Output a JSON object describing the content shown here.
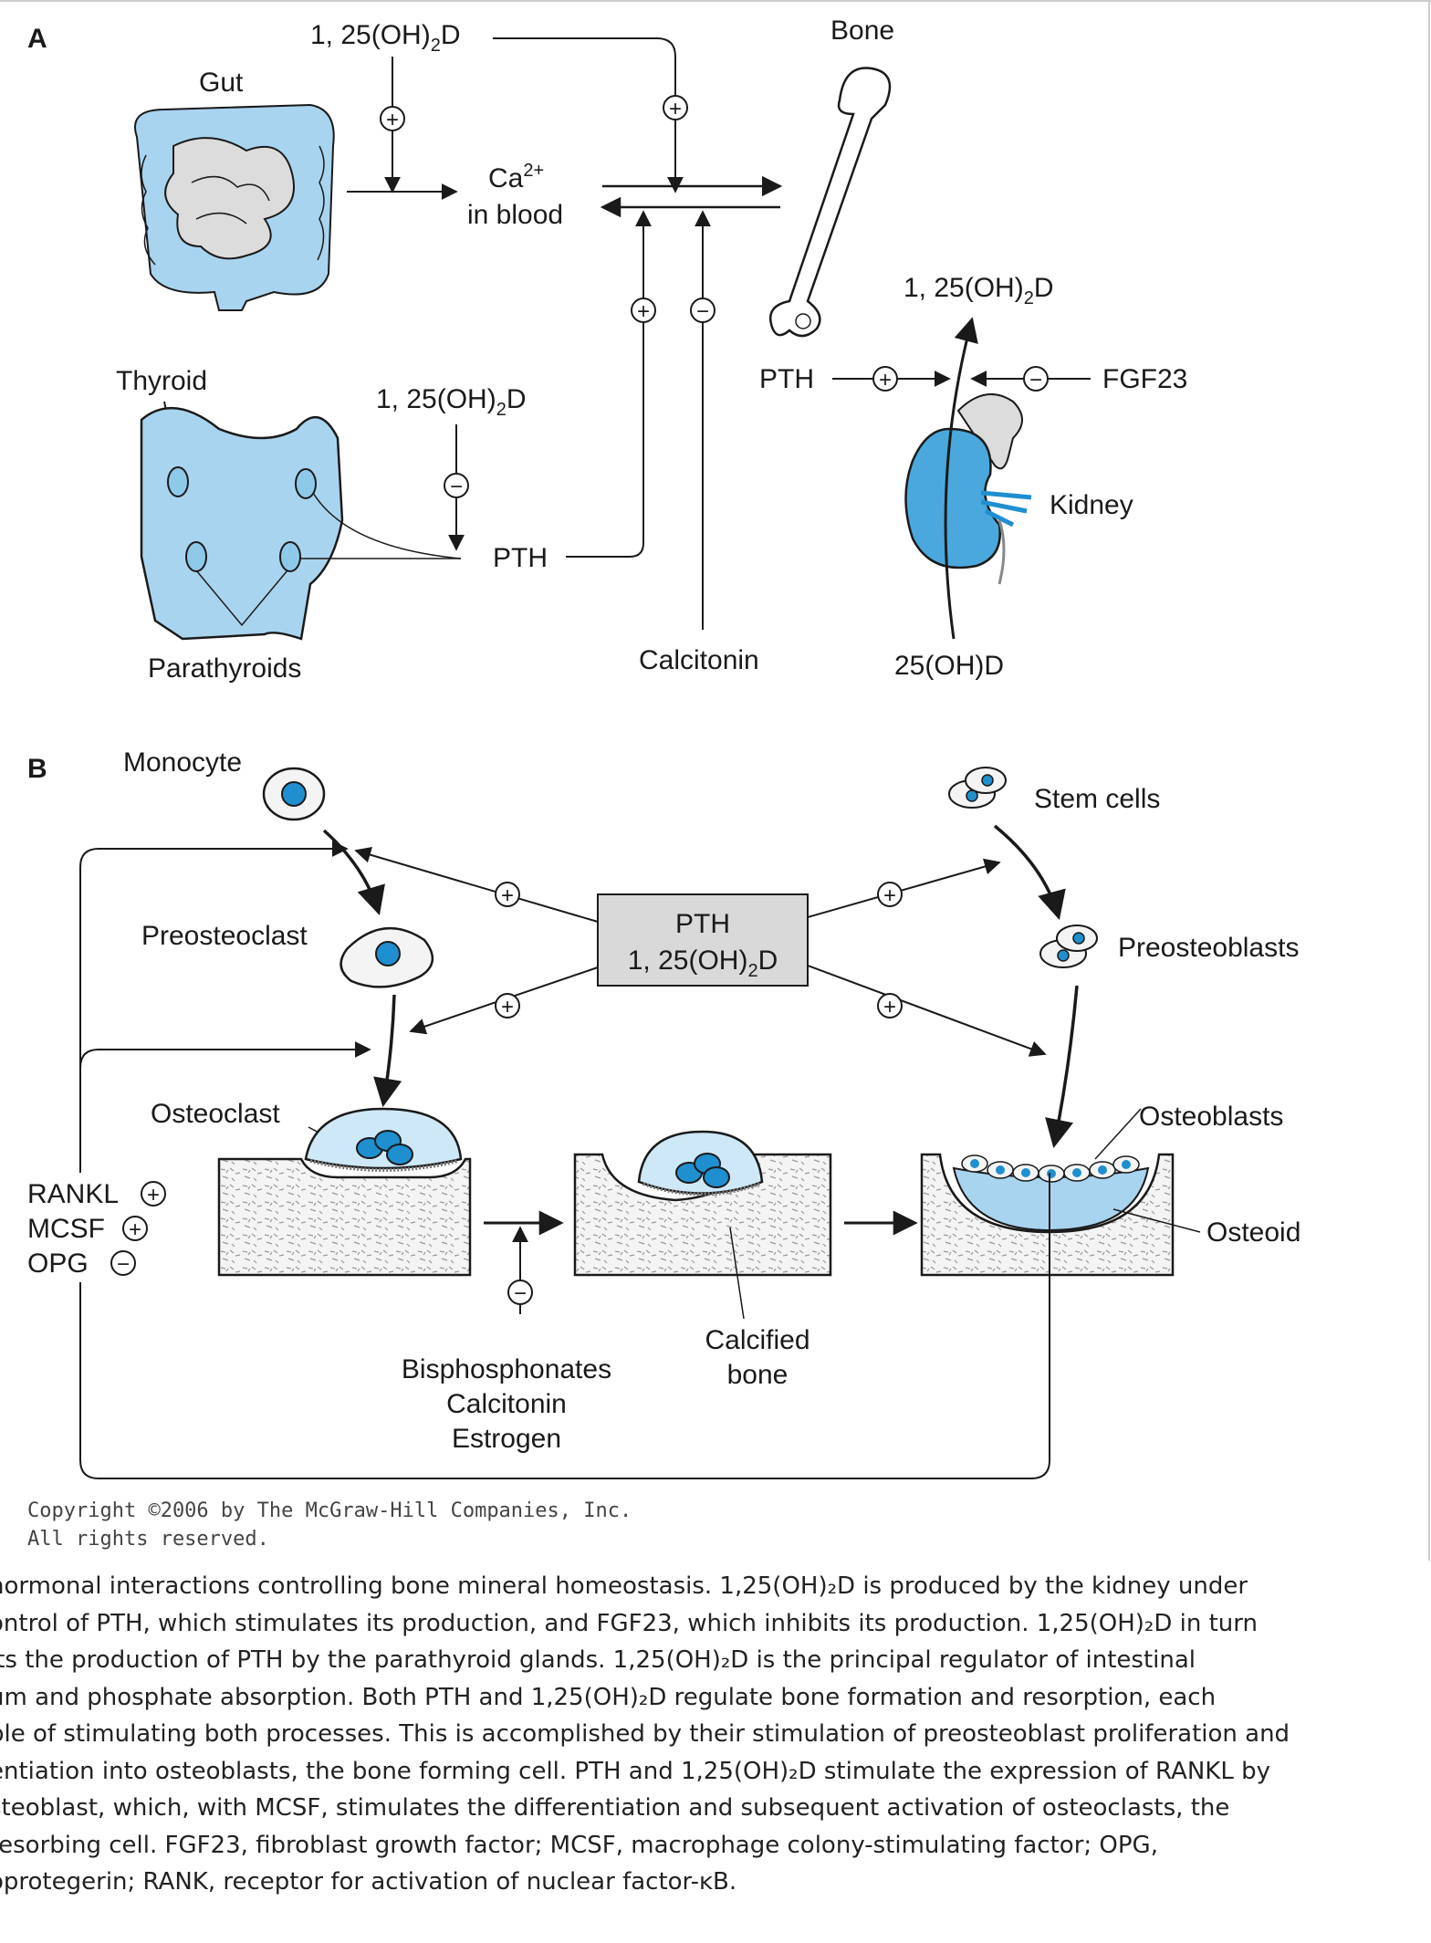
{
  "panel_a": {
    "label": "A",
    "gut": "Gut",
    "bone": "Bone",
    "vitd_top": "1, 25(OH)",
    "vitd_sub": "2",
    "vitd_suffix": "D",
    "ca_line1": "Ca",
    "ca_sup": "2+",
    "ca_line2": "in blood",
    "thyroid": "Thyroid",
    "parathyroids": "Parathyroids",
    "pth": "PTH",
    "calcitonin": "Calcitonin",
    "fgf23": "FGF23",
    "kidney": "Kidney",
    "ohd": "25(OH)D",
    "plus": "+",
    "minus": "−"
  },
  "panel_b": {
    "label": "B",
    "monocyte": "Monocyte",
    "preosteoclast": "Preosteoclast",
    "osteoclast": "Osteoclast",
    "stem_cells": "Stem cells",
    "preosteoblasts": "Preosteoblasts",
    "osteoblasts": "Osteoblasts",
    "osteoid": "Osteoid",
    "box_line1": "PTH",
    "box_line2": "1, 25(OH)",
    "rankl": "RANKL",
    "mcsf": "MCSF",
    "opg": "OPG",
    "bisphosphonates": "Bisphosphonates",
    "calcitonin": "Calcitonin",
    "estrogen": "Estrogen",
    "calcified_1": "Calcified",
    "calcified_2": "bone"
  },
  "copyright": {
    "line1": "Copyright ©2006 by The McGraw-Hill Companies, Inc.",
    "line2": "All rights reserved."
  },
  "caption": {
    "line1": "hormonal interactions controlling bone mineral homeostasis. 1,25(OH)₂D is produced by the kidney under",
    "line2": "ontrol of PTH, which stimulates its production, and FGF23, which inhibits its production. 1,25(OH)₂D in turn",
    "line3": "its the production of PTH by the parathyroid glands. 1,25(OH)₂D is the principal regulator of intestinal",
    "line4": "um and phosphate absorption. Both PTH and 1,25(OH)₂D regulate bone formation and resorption, each",
    "line5": "ble of stimulating both processes. This is accomplished by their stimulation of preosteoblast proliferation and",
    "line6": "entiation into osteoblasts, the bone forming cell. PTH and 1,25(OH)₂D stimulate the expression of RANKL by",
    "line7": "steoblast, which, with MCSF, stimulates the differentiation and subsequent activation of osteoclasts, the",
    "line8": " resorbing cell. FGF23, fibroblast growth factor; MCSF, macrophage colony-stimulating factor; OPG,",
    "line9": "oprotegerin; RANK, receptor for activation of nuclear factor-ĸB."
  },
  "colors": {
    "accent_blue": "#8fc9ea",
    "nucleus_blue": "#1f8fd0",
    "box_gray": "#d9d9d9"
  }
}
